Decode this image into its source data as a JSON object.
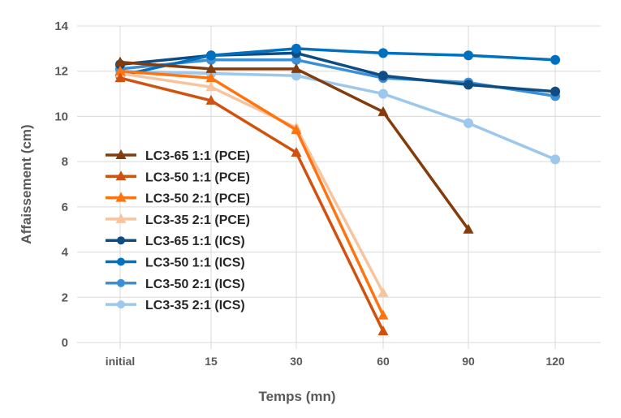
{
  "chart_data": {
    "type": "line",
    "title": "",
    "xlabel": "Temps (mn)",
    "ylabel": "Affaissement (cm)",
    "categories": [
      "initial",
      "15",
      "30",
      "60",
      "90",
      "120"
    ],
    "ylim": [
      0,
      14
    ],
    "yticks": [
      0,
      2,
      4,
      6,
      8,
      10,
      12,
      14
    ],
    "grid": true,
    "legend_placement": "inside-left",
    "series": [
      {
        "name": "LC3-65 1:1 (PCE)",
        "marker": "triangle",
        "color": "#843C0C",
        "values": [
          12.4,
          12.1,
          12.1,
          10.2,
          5.0,
          null
        ]
      },
      {
        "name": "LC3-50 1:1 (PCE)",
        "marker": "triangle",
        "color": "#D0520E",
        "values": [
          11.7,
          10.7,
          8.4,
          0.5,
          null,
          null
        ]
      },
      {
        "name": "LC3-50 2:1 (PCE)",
        "marker": "triangle",
        "color": "#FF7410",
        "values": [
          12.0,
          11.7,
          9.4,
          1.2,
          null,
          null
        ]
      },
      {
        "name": "LC3-35 2:1 (PCE)",
        "marker": "triangle",
        "color": "#F8C49E",
        "values": [
          11.9,
          11.3,
          9.5,
          2.2,
          null,
          null
        ]
      },
      {
        "name": "LC3-65 1:1 (ICS)",
        "marker": "circle",
        "color": "#0F4C81",
        "values": [
          12.3,
          12.7,
          12.8,
          11.8,
          11.4,
          11.1
        ]
      },
      {
        "name": "LC3-50 1:1 (ICS)",
        "marker": "circle",
        "color": "#0070C0",
        "values": [
          11.8,
          12.7,
          13.0,
          12.8,
          12.7,
          12.5
        ]
      },
      {
        "name": "LC3-50 2:1 (ICS)",
        "marker": "circle",
        "color": "#3A8FD6",
        "values": [
          12.1,
          12.5,
          12.5,
          11.7,
          11.5,
          10.9
        ]
      },
      {
        "name": "LC3-35 2:1 (ICS)",
        "marker": "circle",
        "color": "#9DC8EC",
        "values": [
          12.0,
          11.9,
          11.8,
          11.0,
          9.7,
          8.1
        ]
      }
    ]
  }
}
